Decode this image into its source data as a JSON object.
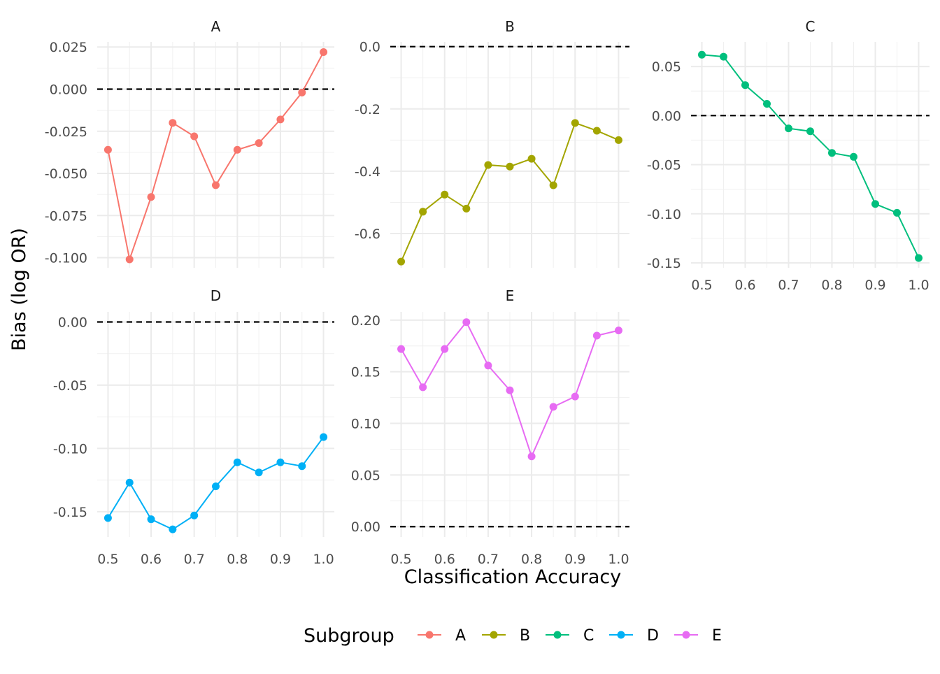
{
  "chart_data": {
    "type": "line",
    "facets": [
      "A",
      "B",
      "C",
      "D",
      "E"
    ],
    "xlabel": "Classification Accuracy",
    "ylabel": "Bias (log OR)",
    "x": [
      0.5,
      0.55,
      0.6,
      0.65,
      0.7,
      0.75,
      0.8,
      0.85,
      0.9,
      0.95,
      1.0
    ],
    "x_ticks": [
      "0.5",
      "0.6",
      "0.7",
      "0.8",
      "0.9",
      "1.0"
    ],
    "reference_line": 0,
    "legend": {
      "title": "Subgroup",
      "position": "bottom"
    },
    "grid": true,
    "series": [
      {
        "name": "A",
        "color": "#F8766D",
        "values": [
          -0.036,
          -0.101,
          -0.064,
          -0.02,
          -0.028,
          -0.057,
          -0.036,
          -0.032,
          -0.018,
          -0.002,
          0.022
        ],
        "ylim": [
          -0.106,
          0.028
        ],
        "y_ticks": [
          "-0.100",
          "-0.075",
          "-0.050",
          "-0.025",
          "0.000",
          "0.025"
        ]
      },
      {
        "name": "B",
        "color": "#A3A500",
        "values": [
          -0.69,
          -0.53,
          -0.475,
          -0.52,
          -0.38,
          -0.385,
          -0.36,
          -0.445,
          -0.245,
          -0.27,
          -0.3
        ],
        "ylim": [
          -0.71,
          0.015
        ],
        "y_ticks": [
          "-0.6",
          "-0.4",
          "-0.2",
          "0.0"
        ]
      },
      {
        "name": "C",
        "color": "#00BF7D",
        "values": [
          0.062,
          0.06,
          0.031,
          0.012,
          -0.013,
          -0.016,
          -0.038,
          -0.042,
          -0.09,
          -0.099,
          -0.145
        ],
        "ylim": [
          -0.155,
          0.075
        ],
        "y_ticks": [
          "-0.15",
          "-0.10",
          "-0.05",
          "0.00",
          "0.05"
        ]
      },
      {
        "name": "D",
        "color": "#00B0F6",
        "values": [
          -0.155,
          -0.127,
          -0.156,
          -0.164,
          -0.153,
          -0.13,
          -0.111,
          -0.119,
          -0.111,
          -0.114,
          -0.091
        ],
        "ylim": [
          -0.17,
          0.008
        ],
        "y_ticks": [
          "-0.15",
          "-0.10",
          "-0.05",
          "0.00"
        ]
      },
      {
        "name": "E",
        "color": "#E76BF3",
        "values": [
          0.172,
          0.135,
          0.172,
          0.198,
          0.156,
          0.132,
          0.068,
          0.116,
          0.126,
          0.185,
          0.19
        ],
        "ylim": [
          -0.01,
          0.208
        ],
        "y_ticks": [
          "0.00",
          "0.05",
          "0.10",
          "0.15",
          "0.20"
        ]
      }
    ]
  }
}
